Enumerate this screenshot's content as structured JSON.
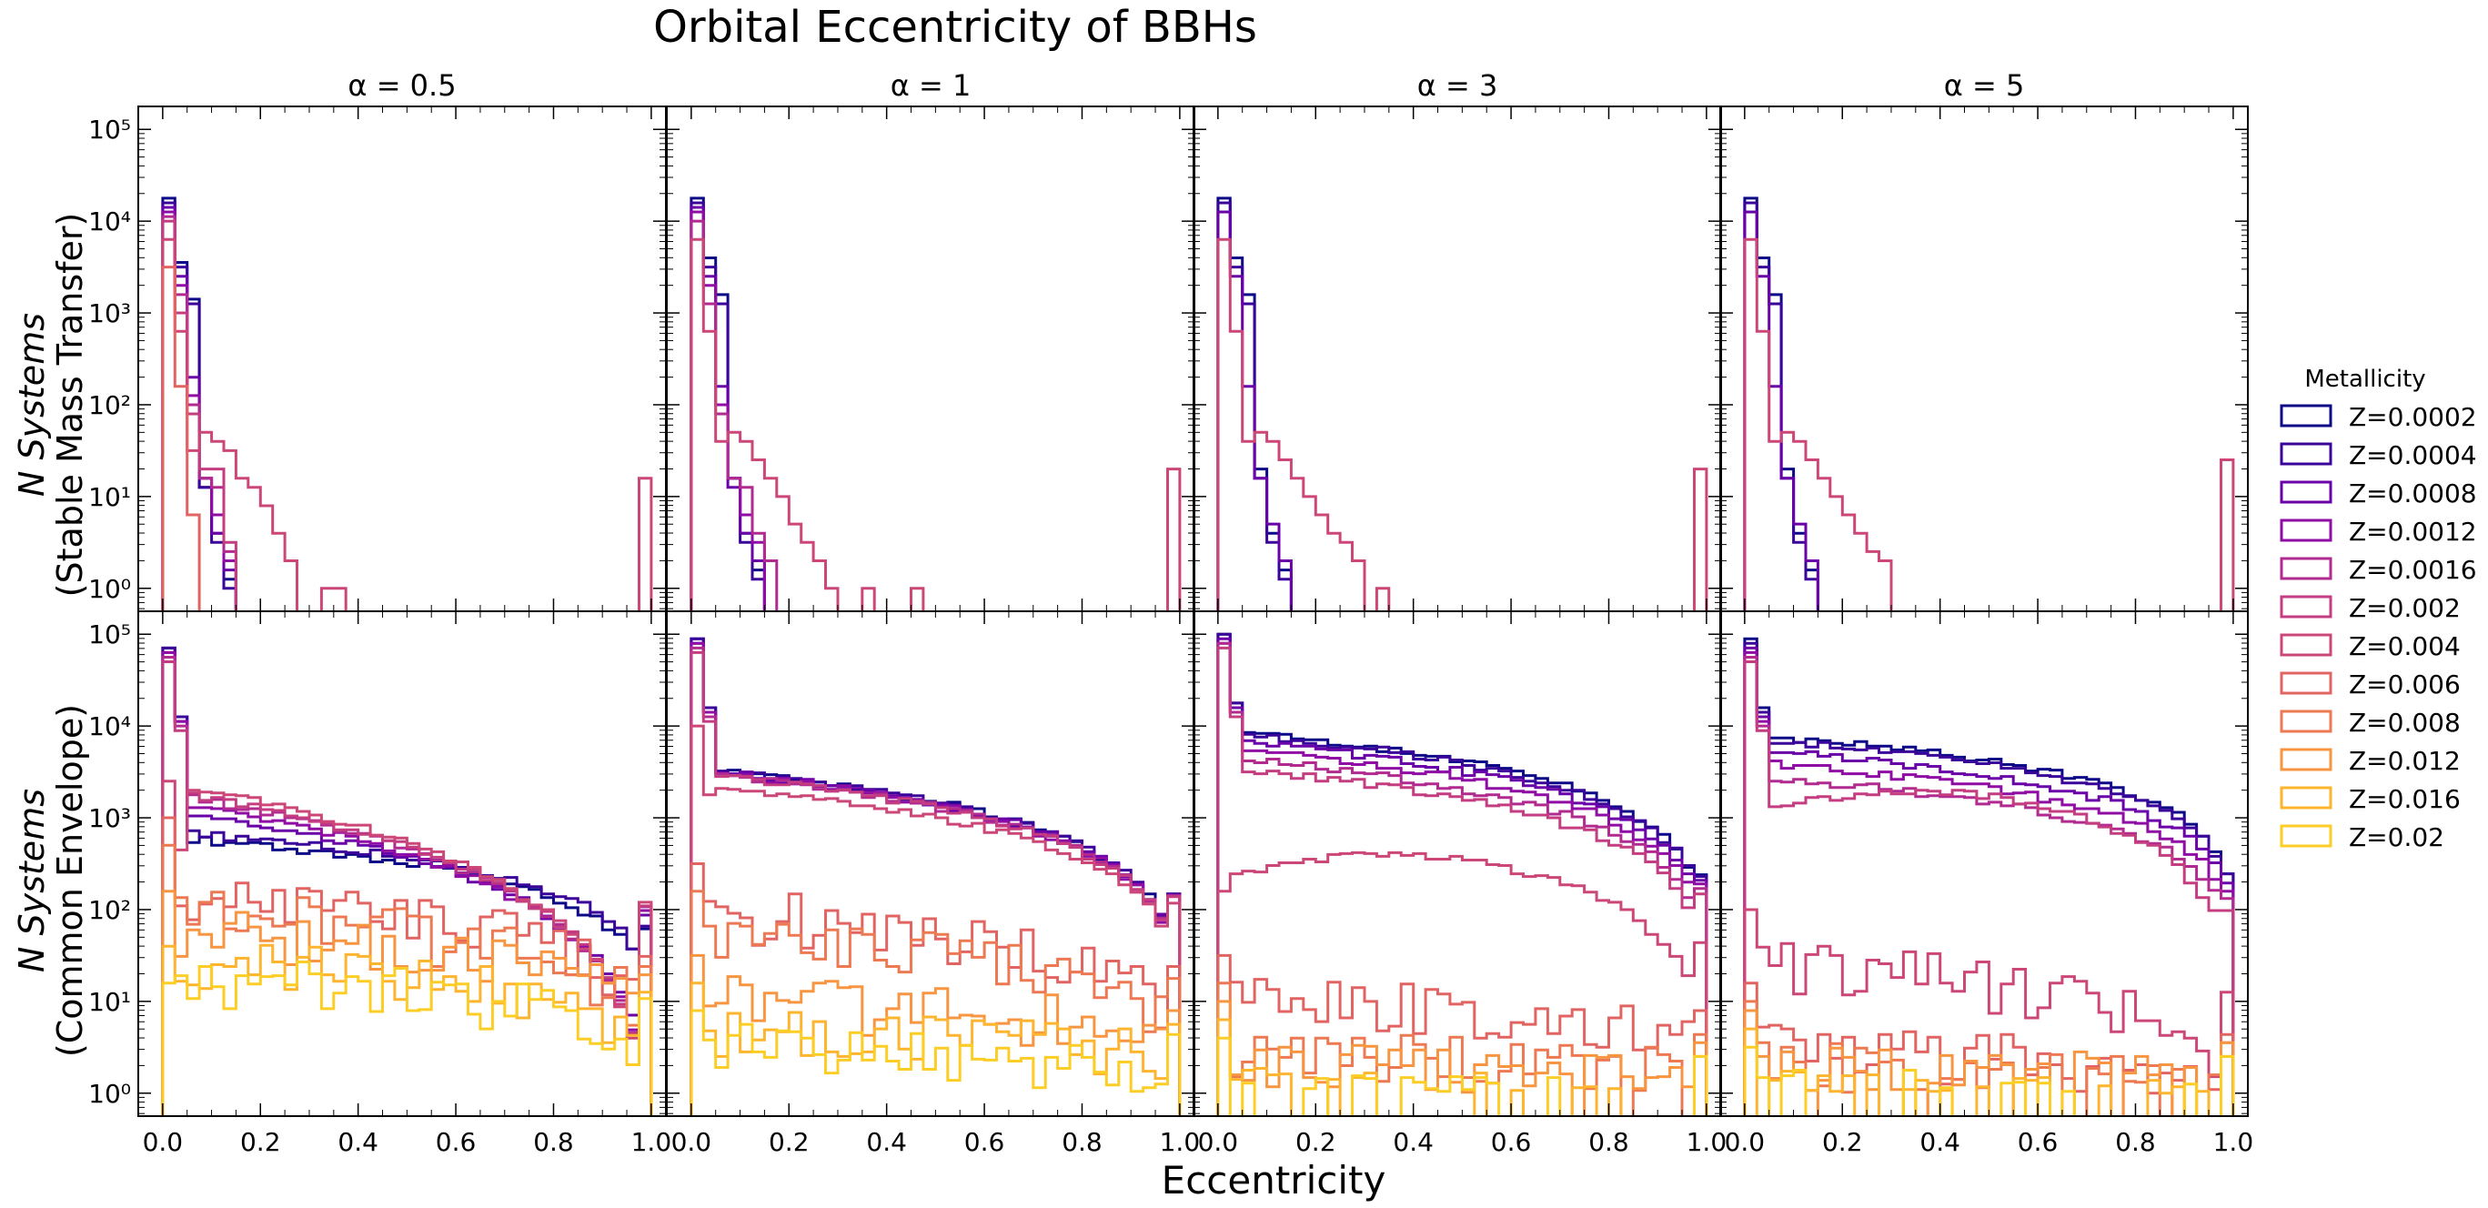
{
  "title": "Orbital Eccentricity of BBHs",
  "xlabel": "Eccentricity",
  "row_labels": [
    {
      "line1": "N Systems",
      "line2": "(Stable Mass Transfer)"
    },
    {
      "line1": "N Systems",
      "line2": "(Common Envelope)"
    }
  ],
  "column_titles": [
    "α = 0.5",
    "α = 1",
    "α = 3",
    "α = 5"
  ],
  "legend": {
    "title": "Metallicity",
    "entries": [
      "Z=0.0002",
      "Z=0.0004",
      "Z=0.0008",
      "Z=0.0012",
      "Z=0.0016",
      "Z=0.002",
      "Z=0.004",
      "Z=0.006",
      "Z=0.008",
      "Z=0.012",
      "Z=0.016",
      "Z=0.02"
    ]
  },
  "colors": [
    "#0d0887",
    "#3a049a",
    "#6a00a8",
    "#8f0da4",
    "#b12a90",
    "#c33d80",
    "#cc4778",
    "#e16462",
    "#ed7953",
    "#f89540",
    "#fdb42f",
    "#fcce25"
  ],
  "chart_data": [
    {
      "type": "histogram-step",
      "panel": "α = 0.5, Stable Mass Transfer",
      "row": 0,
      "col": 0,
      "xlim": [
        -0.05,
        1.02
      ],
      "ylog": true,
      "ylim_exponent": [
        -0.25,
        5.2
      ],
      "x_bins": [
        0.0,
        0.025,
        0.05,
        0.075,
        0.1,
        0.125,
        0.15,
        0.175,
        0.2,
        0.225,
        0.25,
        0.275,
        0.3,
        0.325,
        0.35,
        0.375,
        0.4,
        0.425,
        0.45,
        0.475,
        0.5,
        0.525,
        0.55,
        0.575,
        0.6,
        0.625,
        0.65,
        0.675,
        0.7,
        0.725,
        0.75,
        0.775,
        0.8,
        0.825,
        0.85,
        0.875,
        0.9,
        0.925,
        0.95,
        0.975,
        1.0
      ],
      "series": [
        {
          "name": "Z=0.0002",
          "logN": [
            4.25,
            3.55,
            3.15,
            1.1,
            0.6,
            0.1,
            -1
          ]
        },
        {
          "name": "Z=0.0004",
          "logN": [
            4.2,
            3.5,
            3.1,
            1.1,
            0.5,
            0.0,
            -1
          ]
        },
        {
          "name": "Z=0.0008",
          "logN": [
            4.15,
            3.4,
            2.3,
            1.2,
            0.6,
            0.2,
            -1
          ]
        },
        {
          "name": "Z=0.0012",
          "logN": [
            4.1,
            3.3,
            2.1,
            1.2,
            0.8,
            0.3,
            -1
          ]
        },
        {
          "name": "Z=0.0016",
          "logN": [
            4.05,
            3.2,
            2.0,
            1.2,
            1.1,
            0.4,
            -1
          ]
        },
        {
          "name": "Z=0.002",
          "logN": [
            4.0,
            3.0,
            1.9,
            1.3,
            1.3,
            0.5,
            -1
          ]
        },
        {
          "name": "Z=0.004",
          "logN": [
            3.8,
            2.8,
            1.5,
            1.7,
            1.6,
            1.5,
            1.2,
            1.1,
            0.9,
            0.6,
            0.3,
            -1,
            -1,
            0.0,
            0.0,
            -1,
            -1,
            -1,
            -1,
            -1,
            -1,
            -1,
            -1,
            -1,
            -1,
            -1,
            -1,
            -1,
            -1,
            -1,
            -1,
            -1,
            -1,
            -1,
            -1,
            -1,
            -1,
            -1,
            -1,
            1.2
          ],
          "note": "log10 counts per bin starting at e=0; -1 = empty"
        },
        {
          "name": "Z=0.006",
          "logN": [
            3.5,
            2.2,
            0.8,
            -1
          ]
        }
      ]
    },
    {
      "type": "histogram-step",
      "panel": "α = 1, Stable Mass Transfer",
      "row": 0,
      "col": 1,
      "xlim": [
        -0.05,
        1.02
      ],
      "ylog": true,
      "ylim_exponent": [
        -0.25,
        5.2
      ],
      "series": [
        {
          "name": "Z=0.0002",
          "logN": [
            4.25,
            3.6,
            3.2,
            1.2,
            0.6,
            0.2,
            -1
          ]
        },
        {
          "name": "Z=0.0004",
          "logN": [
            4.2,
            3.5,
            3.1,
            1.2,
            0.5,
            0.1,
            -1
          ]
        },
        {
          "name": "Z=0.0008",
          "logN": [
            4.15,
            3.4,
            2.2,
            1.1,
            0.6,
            0.3,
            -1
          ]
        },
        {
          "name": "Z=0.0012",
          "logN": [
            4.1,
            3.3,
            2.0,
            1.2,
            0.8,
            0.5,
            -1
          ]
        },
        {
          "name": "Z=0.0016",
          "logN": [
            4.0,
            3.1,
            1.9,
            1.2,
            1.1,
            0.6,
            0.3,
            -1
          ]
        },
        {
          "name": "Z=0.004",
          "logN": [
            3.8,
            2.8,
            1.6,
            1.7,
            1.6,
            1.4,
            1.2,
            1.0,
            0.7,
            0.5,
            0.3,
            0.0,
            -1,
            -1,
            0.0,
            -1,
            -1,
            -1,
            0.0,
            -1,
            -1,
            -1,
            -1,
            -1,
            -1,
            -1,
            -1,
            -1,
            -1,
            -1,
            -1,
            -1,
            -1,
            -1,
            -1,
            -1,
            -1,
            -1,
            -1,
            1.3
          ]
        }
      ]
    },
    {
      "type": "histogram-step",
      "panel": "α = 3, Stable Mass Transfer",
      "row": 0,
      "col": 2,
      "xlim": [
        -0.05,
        1.02
      ],
      "ylog": true,
      "ylim_exponent": [
        -0.25,
        5.2
      ],
      "series": [
        {
          "name": "Z=0.0002",
          "logN": [
            4.25,
            3.6,
            3.2,
            1.3,
            0.6,
            0.2,
            -1
          ]
        },
        {
          "name": "Z=0.0004",
          "logN": [
            4.2,
            3.5,
            3.1,
            1.2,
            0.5,
            0.1,
            -1
          ]
        },
        {
          "name": "Z=0.0008",
          "logN": [
            4.1,
            3.4,
            2.2,
            1.2,
            0.7,
            0.3,
            -1
          ]
        },
        {
          "name": "Z=0.004",
          "logN": [
            3.8,
            2.8,
            1.6,
            1.7,
            1.6,
            1.4,
            1.2,
            1.0,
            0.8,
            0.6,
            0.5,
            0.3,
            -1,
            0.0,
            -1,
            -1,
            -1,
            -1,
            -1,
            -1,
            -1,
            -1,
            -1,
            -1,
            -1,
            -1,
            -1,
            -1,
            -1,
            -1,
            -1,
            -1,
            -1,
            -1,
            -1,
            -1,
            -1,
            -1,
            -1,
            1.3
          ]
        }
      ]
    },
    {
      "type": "histogram-step",
      "panel": "α = 5, Stable Mass Transfer",
      "row": 0,
      "col": 3,
      "xlim": [
        -0.05,
        1.02
      ],
      "ylog": true,
      "ylim_exponent": [
        -0.25,
        5.2
      ],
      "series": [
        {
          "name": "Z=0.0002",
          "logN": [
            4.25,
            3.6,
            3.2,
            1.3,
            0.6,
            0.2,
            -1
          ]
        },
        {
          "name": "Z=0.0004",
          "logN": [
            4.2,
            3.5,
            3.1,
            1.2,
            0.5,
            0.1,
            -1
          ]
        },
        {
          "name": "Z=0.0008",
          "logN": [
            4.1,
            3.4,
            2.2,
            1.2,
            0.7,
            0.3,
            -1
          ]
        },
        {
          "name": "Z=0.004",
          "logN": [
            3.8,
            2.8,
            1.6,
            1.7,
            1.6,
            1.4,
            1.2,
            1.0,
            0.8,
            0.6,
            0.4,
            0.3,
            -1,
            -1,
            -1,
            -1,
            -1,
            -1,
            -1,
            -1,
            -1,
            -1,
            -1,
            -1,
            -1,
            -1,
            -1,
            -1,
            -1,
            -1,
            -1,
            -1,
            -1,
            -1,
            -1,
            -1,
            -1,
            -1,
            -1,
            1.4
          ]
        }
      ]
    },
    {
      "type": "histogram-step",
      "panel": "α = 0.5, Common Envelope",
      "row": 1,
      "col": 0,
      "xlim": [
        -0.05,
        1.02
      ],
      "ylog": true,
      "ylim_exponent": [
        -0.25,
        5.2
      ],
      "series_model": "N(e) = A * (1-e)^p, plus near-circular spike",
      "series": [
        {
          "name": "Z=0.0002",
          "A": 600,
          "p": 1.0,
          "spike": 4.85
        },
        {
          "name": "Z=0.0004",
          "A": 700,
          "p": 1.0,
          "spike": 4.85
        },
        {
          "name": "Z=0.0008",
          "A": 1200,
          "p": 1.8,
          "spike": 4.8
        },
        {
          "name": "Z=0.0012",
          "A": 1500,
          "p": 2.0,
          "spike": 4.8
        },
        {
          "name": "Z=0.0016",
          "A": 1800,
          "p": 2.1,
          "spike": 4.75
        },
        {
          "name": "Z=0.002",
          "A": 1900,
          "p": 2.1,
          "spike": 4.7
        },
        {
          "name": "Z=0.004",
          "A": 2300,
          "p": 2.2,
          "spike": 3.4
        },
        {
          "name": "Z=0.006",
          "A": 150,
          "p": 0.9,
          "spike": 3.0
        },
        {
          "name": "Z=0.008",
          "A": 90,
          "p": 0.8,
          "spike": 2.7
        },
        {
          "name": "Z=0.012",
          "A": 60,
          "p": 0.7,
          "spike": 2.2
        },
        {
          "name": "Z=0.016",
          "A": 25,
          "p": 0.6,
          "spike": 1.6
        },
        {
          "name": "Z=0.02",
          "A": 18,
          "p": 0.6,
          "spike": 1.2
        }
      ]
    },
    {
      "type": "histogram-step",
      "panel": "α = 1, Common Envelope",
      "row": 1,
      "col": 1,
      "xlim": [
        -0.05,
        1.02
      ],
      "ylog": true,
      "ylim_exponent": [
        -0.25,
        5.2
      ],
      "series": [
        {
          "name": "Z=0.0002",
          "A": 3500,
          "p": 1.3,
          "spike": 4.95
        },
        {
          "name": "Z=0.0004",
          "A": 3400,
          "p": 1.3,
          "spike": 4.95
        },
        {
          "name": "Z=0.0008",
          "A": 3300,
          "p": 1.3,
          "spike": 4.9
        },
        {
          "name": "Z=0.0012",
          "A": 3200,
          "p": 1.3,
          "spike": 4.9
        },
        {
          "name": "Z=0.0016",
          "A": 3100,
          "p": 1.3,
          "spike": 4.85
        },
        {
          "name": "Z=0.002",
          "A": 3000,
          "p": 1.3,
          "spike": 4.8
        },
        {
          "name": "Z=0.004",
          "A": 2200,
          "p": 1.2,
          "spike": 4.0
        },
        {
          "name": "Z=0.006",
          "A": 90,
          "p": 0.8,
          "spike": 2.5
        },
        {
          "name": "Z=0.008",
          "A": 50,
          "p": 0.7,
          "spike": 2.2
        },
        {
          "name": "Z=0.012",
          "A": 10,
          "p": 0.4,
          "spike": 1.5
        },
        {
          "name": "Z=0.016",
          "A": 5,
          "p": 0.3,
          "spike": 1.2
        },
        {
          "name": "Z=0.02",
          "A": 3,
          "p": 0.3,
          "spike": 0.9
        }
      ]
    },
    {
      "type": "histogram-step",
      "panel": "α = 3, Common Envelope",
      "row": 1,
      "col": 2,
      "xlim": [
        -0.05,
        1.02
      ],
      "ylog": true,
      "ylim_exponent": [
        -0.25,
        5.2
      ],
      "series": [
        {
          "name": "Z=0.0002",
          "A": 9000,
          "p": 1.2,
          "spike": 5.0
        },
        {
          "name": "Z=0.0004",
          "A": 8500,
          "p": 1.2,
          "spike": 5.0
        },
        {
          "name": "Z=0.0008",
          "A": 7000,
          "p": 1.2,
          "spike": 4.95
        },
        {
          "name": "Z=0.0012",
          "A": 5800,
          "p": 1.2,
          "spike": 4.9
        },
        {
          "name": "Z=0.0016",
          "A": 4500,
          "p": 1.2,
          "spike": 4.9
        },
        {
          "name": "Z=0.002",
          "A": 3500,
          "p": 1.2,
          "spike": 4.85
        },
        {
          "name": "Z=0.004",
          "A": 300,
          "p": 0.6,
          "spike": 2.2,
          "hump": true
        },
        {
          "name": "Z=0.006",
          "A": 10,
          "p": 0.4,
          "spike": 1.5
        },
        {
          "name": "Z=0.008",
          "A": 3,
          "p": 0.3,
          "spike": 1.2
        },
        {
          "name": "Z=0.012",
          "A": 2,
          "p": 0.2,
          "spike": 1.0
        },
        {
          "name": "Z=0.016",
          "A": 1,
          "p": 0.2,
          "spike": 0.8
        },
        {
          "name": "Z=0.02",
          "A": 1,
          "p": 0.2,
          "spike": 0.6
        }
      ]
    },
    {
      "type": "histogram-step",
      "panel": "α = 5, Common Envelope",
      "row": 1,
      "col": 3,
      "xlim": [
        -0.05,
        1.02
      ],
      "ylog": true,
      "ylim_exponent": [
        -0.25,
        5.2
      ],
      "series": [
        {
          "name": "Z=0.0002",
          "A": 8000,
          "p": 1.0,
          "spike": 4.95
        },
        {
          "name": "Z=0.0004",
          "A": 7200,
          "p": 1.0,
          "spike": 4.9
        },
        {
          "name": "Z=0.0008",
          "A": 5500,
          "p": 1.0,
          "spike": 4.85
        },
        {
          "name": "Z=0.0012",
          "A": 4000,
          "p": 1.0,
          "spike": 4.8
        },
        {
          "name": "Z=0.0016",
          "A": 2800,
          "p": 1.0,
          "spike": 4.75
        },
        {
          "name": "Z=0.002",
          "A": 1500,
          "p": 1.0,
          "spike": 4.7,
          "hump": true
        },
        {
          "name": "Z=0.004",
          "A": 25,
          "p": 0.8,
          "spike": 2.0
        },
        {
          "name": "Z=0.006",
          "A": 3,
          "p": 0.4,
          "spike": 1.2
        },
        {
          "name": "Z=0.008",
          "A": 2,
          "p": 0.3,
          "spike": 1.0
        },
        {
          "name": "Z=0.012",
          "A": 2,
          "p": 0.3,
          "spike": 0.9
        },
        {
          "name": "Z=0.016",
          "A": 1,
          "p": 0.2,
          "spike": 0.7
        },
        {
          "name": "Z=0.02",
          "A": 1,
          "p": 0.2,
          "spike": 0.5
        }
      ]
    }
  ],
  "axes": {
    "xticks": [
      "0.0",
      "0.2",
      "0.4",
      "0.6",
      "0.8",
      "1.0"
    ],
    "xtick_values": [
      0,
      0.2,
      0.4,
      0.6,
      0.8,
      1.0
    ],
    "yticks": [
      "10⁰",
      "10¹",
      "10²",
      "10³",
      "10⁴",
      "10⁵"
    ],
    "ytick_exponents": [
      0,
      1,
      2,
      3,
      4,
      5
    ]
  }
}
